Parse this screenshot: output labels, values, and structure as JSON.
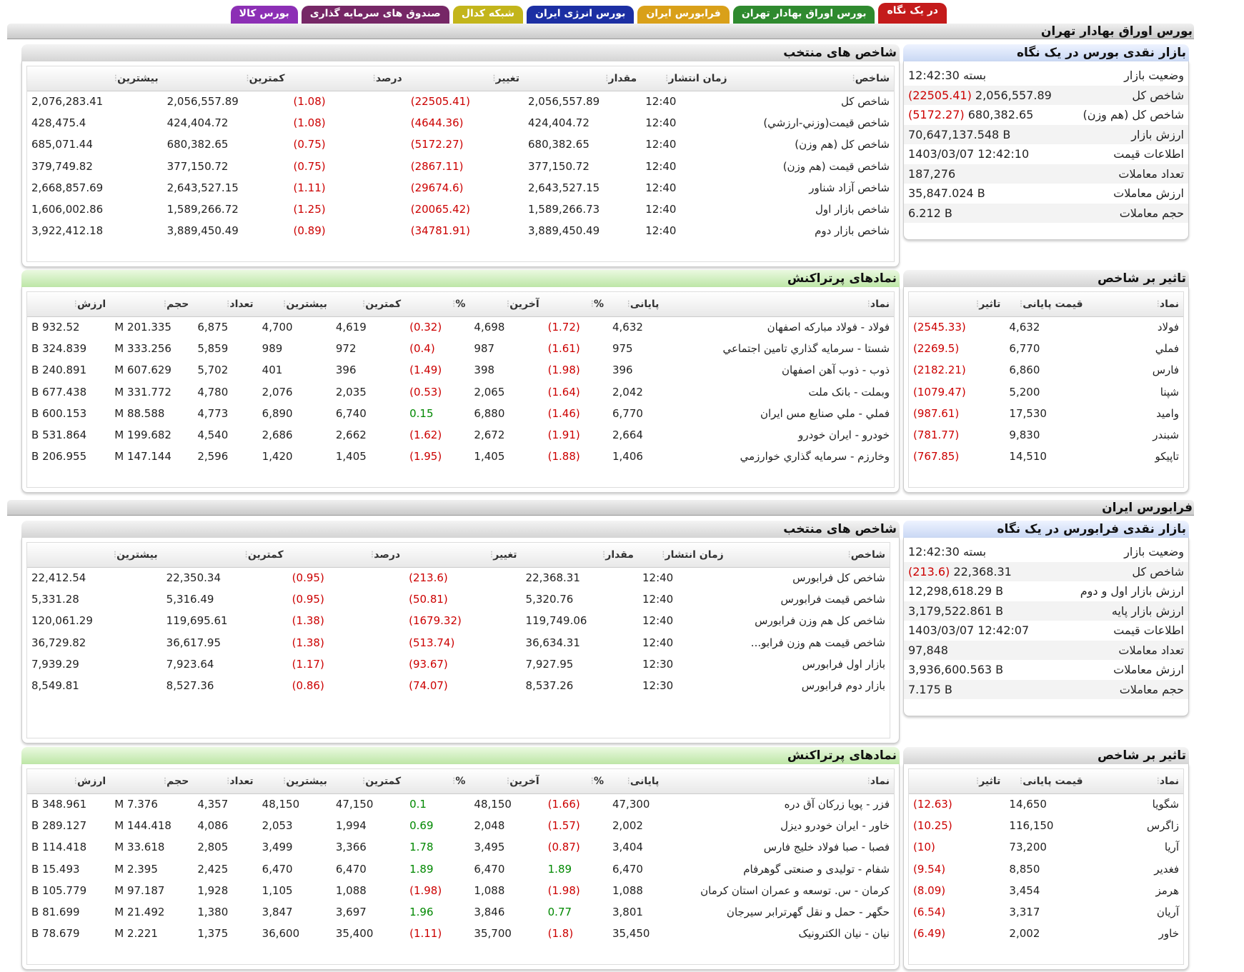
{
  "tabs": [
    {
      "label": "در یک نگاه",
      "color": "#c41b1b"
    },
    {
      "label": "بورس اوراق بهادار تهران",
      "color": "#2f8a2f"
    },
    {
      "label": "فرابورس ایران",
      "color": "#d9a019"
    },
    {
      "label": "بورس انرژی ایران",
      "color": "#1c2fa3"
    },
    {
      "label": "شبکه کدال",
      "color": "#c3b51b"
    },
    {
      "label": "صندوق های سرمایه گذاری",
      "color": "#762766"
    },
    {
      "label": "بورس کالا",
      "color": "#8c2fb5"
    }
  ],
  "tehran": {
    "title": "بورس اوراق بهادار تهران",
    "glance": {
      "title": "بازار نقدی بورس در یک نگاه",
      "rows": [
        {
          "k": "وضعیت بازار",
          "v": "بسته 12:42:30",
          "n": ""
        },
        {
          "k": "شاخص کل",
          "v": "2,056,557.89",
          "n": "(22505.41)"
        },
        {
          "k": "شاخص کل (هم وزن)",
          "v": "680,382.65",
          "n": "(5172.27)"
        },
        {
          "k": "ارزش بازار",
          "v": "70,647,137.548 B",
          "n": ""
        },
        {
          "k": "اطلاعات قیمت",
          "v": "1403/03/07 12:42:10",
          "n": ""
        },
        {
          "k": "تعداد معاملات",
          "v": "187,276",
          "n": ""
        },
        {
          "k": "ارزش معاملات",
          "v": "35,847.024 B",
          "n": ""
        },
        {
          "k": "حجم معاملات",
          "v": "6.212 B",
          "n": ""
        }
      ]
    },
    "indices": {
      "title": "شاخص های منتخب",
      "headers": [
        "شاخص",
        "زمان انتشار",
        "مقدار",
        "تغییر",
        "درصد",
        "کمترین",
        "بیشترین"
      ],
      "rows": [
        [
          "شاخص کل",
          "12:40",
          "2,056,557.89",
          "(22505.41)",
          "(1.08)",
          "2,056,557.89",
          "2,076,283.41"
        ],
        [
          "شاخص قيمت(وزني-ارزشي)",
          "12:40",
          "424,404.72",
          "(4644.36)",
          "(1.08)",
          "424,404.72",
          "428,475.4"
        ],
        [
          "شاخص كل (هم وزن)",
          "12:40",
          "680,382.65",
          "(5172.27)",
          "(0.75)",
          "680,382.65",
          "685,071.44"
        ],
        [
          "شاخص قيمت (هم وزن)",
          "12:40",
          "377,150.72",
          "(2867.11)",
          "(0.75)",
          "377,150.72",
          "379,749.82"
        ],
        [
          "شاخص آزاد شناور",
          "12:40",
          "2,643,527.15",
          "(29674.6)",
          "(1.11)",
          "2,643,527.15",
          "2,668,857.69"
        ],
        [
          "شاخص بازار اول",
          "12:40",
          "1,589,266.73",
          "(20065.42)",
          "(1.25)",
          "1,589,266.72",
          "1,606,002.86"
        ],
        [
          "شاخص بازار دوم",
          "12:40",
          "3,889,450.49",
          "(34781.91)",
          "(0.89)",
          "3,889,450.49",
          "3,922,412.18"
        ]
      ]
    },
    "impact": {
      "title": "تاثیر بر شاخص",
      "headers": [
        "نماد",
        "قیمت پایانی",
        "تاثیر"
      ],
      "rows": [
        [
          "فولاد",
          "4,632",
          "(2545.33)"
        ],
        [
          "فملي",
          "6,770",
          "(2269.5)"
        ],
        [
          "فارس",
          "6,860",
          "(2182.21)"
        ],
        [
          "شپنا",
          "5,200",
          "(1079.47)"
        ],
        [
          "وامید",
          "17,530",
          "(987.61)"
        ],
        [
          "شبندر",
          "9,830",
          "(781.77)"
        ],
        [
          "تاپیکو",
          "14,510",
          "(767.85)"
        ]
      ]
    },
    "active": {
      "title": "نمادهای پرتراکنش",
      "headers": [
        "نماد",
        "پایانی",
        "%",
        "آخرین",
        "%",
        "کمترین",
        "بیشترین",
        "تعداد",
        "حجم",
        "ارزش"
      ],
      "rows": [
        [
          "فولاد - فولاد مباركه اصفهان",
          "4,632",
          "(1.72)",
          "4,698",
          "(0.32)",
          "4,619",
          "4,700",
          "6,875",
          "201.335 M",
          "932.52 B"
        ],
        [
          "شستا - سرمايه گذاري تامين اجتماعي",
          "975",
          "(1.61)",
          "987",
          "(0.4)",
          "972",
          "989",
          "5,859",
          "333.256 M",
          "324.839 B"
        ],
        [
          "ذوب - ذوب آهن اصفهان",
          "396",
          "(1.98)",
          "398",
          "(1.49)",
          "396",
          "401",
          "5,702",
          "607.629 M",
          "240.891 B"
        ],
        [
          "وبملت - بانک ملت",
          "2,042",
          "(1.64)",
          "2,065",
          "(0.53)",
          "2,035",
          "2,076",
          "4,780",
          "331.772 M",
          "677.438 B"
        ],
        [
          "فملي - ملي صنايع مس ايران",
          "6,770",
          "(1.46)",
          "6,880",
          "0.15",
          "6,740",
          "6,890",
          "4,773",
          "88.588 M",
          "600.153 B"
        ],
        [
          "خودرو - ايران خودرو",
          "2,664",
          "(1.91)",
          "2,672",
          "(1.62)",
          "2,662",
          "2,686",
          "4,540",
          "199.682 M",
          "531.864 B"
        ],
        [
          "وخارزم - سرمايه گذاري خوارزمي",
          "1,406",
          "(1.88)",
          "1,405",
          "(1.95)",
          "1,405",
          "1,420",
          "2,596",
          "147.144 M",
          "206.955 B"
        ]
      ]
    }
  },
  "fara": {
    "title": "فرابورس ایران",
    "glance": {
      "title": "بازار نقدی فرابورس در یک نگاه",
      "rows": [
        {
          "k": "وضعیت بازار",
          "v": "بسته 12:42:30",
          "n": ""
        },
        {
          "k": "شاخص کل",
          "v": "22,368.31",
          "n": "(213.6)"
        },
        {
          "k": "ارزش بازار اول و دوم",
          "v": "12,298,618.29 B",
          "n": ""
        },
        {
          "k": "ارزش بازار پایه",
          "v": "3,179,522.861 B",
          "n": ""
        },
        {
          "k": "اطلاعات قیمت",
          "v": "1403/03/07 12:42:07",
          "n": ""
        },
        {
          "k": "تعداد معاملات",
          "v": "97,848",
          "n": ""
        },
        {
          "k": "ارزش معاملات",
          "v": "3,936,600.563 B",
          "n": ""
        },
        {
          "k": "حجم معاملات",
          "v": "7.175 B",
          "n": ""
        }
      ]
    },
    "indices": {
      "title": "شاخص های منتخب",
      "headers": [
        "شاخص",
        "زمان انتشار",
        "مقدار",
        "تغییر",
        "درصد",
        "کمترین",
        "بیشترین"
      ],
      "rows": [
        [
          "شاخص کل فرابورس",
          "12:40",
          "22,368.31",
          "(213.6)",
          "(0.95)",
          "22,350.34",
          "22,412.54"
        ],
        [
          "شاخص قیمت فرابورس",
          "12:40",
          "5,320.76",
          "(50.81)",
          "(0.95)",
          "5,316.49",
          "5,331.28"
        ],
        [
          "شاخص کل هم وزن فرابورس",
          "12:40",
          "119,749.06",
          "(1679.32)",
          "(1.38)",
          "119,695.61",
          "120,061.29"
        ],
        [
          "شاخص قیمت هم وزن فرابو...",
          "12:40",
          "36,634.31",
          "(513.74)",
          "(1.38)",
          "36,617.95",
          "36,729.82"
        ],
        [
          "بازار اول فرابورس",
          "12:30",
          "7,927.95",
          "(93.67)",
          "(1.17)",
          "7,923.64",
          "7,939.29"
        ],
        [
          "بازار دوم فرابورس",
          "12:30",
          "8,537.26",
          "(74.07)",
          "(0.86)",
          "8,527.36",
          "8,549.81"
        ]
      ]
    },
    "impact": {
      "title": "تاثیر بر شاخص",
      "headers": [
        "نماد",
        "قیمت پایانی",
        "تاثیر"
      ],
      "rows": [
        [
          "شگویا",
          "14,650",
          "(12.63)"
        ],
        [
          "زاگرس",
          "116,150",
          "(10.25)"
        ],
        [
          "آریا",
          "73,200",
          "(10)"
        ],
        [
          "فغدیر",
          "8,850",
          "(9.54)"
        ],
        [
          "هرمز",
          "3,454",
          "(8.09)"
        ],
        [
          "آریان",
          "3,317",
          "(6.54)"
        ],
        [
          "خاور",
          "2,002",
          "(6.49)"
        ]
      ]
    },
    "active": {
      "title": "نمادهای پرتراکنش",
      "headers": [
        "نماد",
        "پایانی",
        "%",
        "آخرین",
        "%",
        "کمترین",
        "بیشترین",
        "تعداد",
        "حجم",
        "ارزش"
      ],
      "rows": [
        [
          "فزر - پویا زرکان آق دره",
          "47,300",
          "(1.66)",
          "48,150",
          "0.1",
          "47,150",
          "48,150",
          "4,357",
          "7.376 M",
          "348.961 B"
        ],
        [
          "خاور - ایران خودرو دیزل",
          "2,002",
          "(1.57)",
          "2,048",
          "0.69",
          "1,994",
          "2,053",
          "4,086",
          "144.418 M",
          "289.127 B"
        ],
        [
          "فصبا - صبا فولاد خلیج فارس",
          "3,404",
          "(0.87)",
          "3,495",
          "1.78",
          "3,366",
          "3,499",
          "2,805",
          "33.618 M",
          "114.418 B"
        ],
        [
          "شفام - تولیدی و صنعتی گوهرفام",
          "6,470",
          "1.89",
          "6,470",
          "1.89",
          "6,470",
          "6,470",
          "2,425",
          "2.395 M",
          "15.493 B"
        ],
        [
          "کرمان - س. توسعه و عمران استان کرمان",
          "1,088",
          "(1.98)",
          "1,088",
          "(1.98)",
          "1,088",
          "1,105",
          "1,928",
          "97.187 M",
          "105.779 B"
        ],
        [
          "حگهر - حمل و نقل گهرترابر سیرجان",
          "3,801",
          "0.77",
          "3,846",
          "1.96",
          "3,697",
          "3,847",
          "1,380",
          "21.492 M",
          "81.699 B"
        ],
        [
          "نیان - نیان الکترونیک",
          "35,450",
          "(1.8)",
          "35,700",
          "(1.11)",
          "35,400",
          "36,600",
          "1,375",
          "2.221 M",
          "78.679 B"
        ]
      ]
    }
  }
}
